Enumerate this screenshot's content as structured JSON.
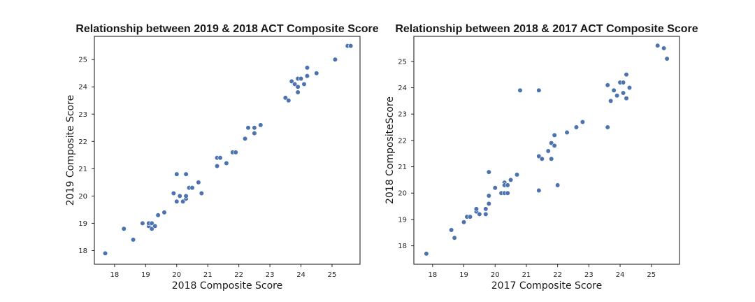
{
  "chart_data": [
    {
      "type": "scatter",
      "title": "Relationship between 2019 & 2018 ACT Composite Score",
      "xlabel": "2018 Composite Score",
      "ylabel": "2019 Composite Score",
      "xlim": [
        17.35,
        25.9
      ],
      "ylim": [
        17.5,
        25.85
      ],
      "xticks": [
        18,
        19,
        20,
        21,
        22,
        23,
        24,
        25
      ],
      "yticks": [
        18,
        19,
        20,
        21,
        22,
        23,
        24,
        25
      ],
      "grid": false,
      "color": "#4c72b0",
      "points": [
        [
          17.7,
          17.9
        ],
        [
          18.3,
          18.8
        ],
        [
          18.6,
          18.4
        ],
        [
          18.9,
          19.0
        ],
        [
          19.1,
          18.9
        ],
        [
          19.1,
          19.0
        ],
        [
          19.2,
          18.8
        ],
        [
          19.2,
          19.0
        ],
        [
          19.3,
          18.9
        ],
        [
          19.4,
          19.3
        ],
        [
          19.6,
          19.4
        ],
        [
          19.9,
          20.1
        ],
        [
          20.0,
          19.8
        ],
        [
          20.0,
          20.8
        ],
        [
          20.1,
          20.0
        ],
        [
          20.2,
          19.8
        ],
        [
          20.3,
          19.9
        ],
        [
          20.3,
          20.0
        ],
        [
          20.3,
          20.8
        ],
        [
          20.4,
          20.3
        ],
        [
          20.5,
          20.3
        ],
        [
          20.7,
          20.5
        ],
        [
          20.8,
          20.1
        ],
        [
          21.3,
          21.1
        ],
        [
          21.3,
          21.4
        ],
        [
          21.4,
          21.4
        ],
        [
          21.6,
          21.2
        ],
        [
          21.8,
          21.6
        ],
        [
          21.9,
          21.6
        ],
        [
          22.2,
          22.1
        ],
        [
          22.3,
          22.5
        ],
        [
          22.5,
          22.3
        ],
        [
          22.5,
          22.5
        ],
        [
          22.7,
          22.6
        ],
        [
          23.5,
          23.6
        ],
        [
          23.6,
          23.5
        ],
        [
          23.7,
          24.2
        ],
        [
          23.8,
          24.1
        ],
        [
          23.9,
          23.8
        ],
        [
          23.9,
          24.0
        ],
        [
          23.9,
          24.3
        ],
        [
          24.0,
          24.3
        ],
        [
          24.1,
          24.1
        ],
        [
          24.2,
          24.4
        ],
        [
          24.2,
          24.7
        ],
        [
          24.5,
          24.5
        ],
        [
          25.1,
          25.0
        ],
        [
          25.5,
          25.5
        ],
        [
          25.6,
          25.5
        ]
      ]
    },
    {
      "type": "scatter",
      "title": "Relationship between 2018 & 2017 ACT Composite Score",
      "xlabel": "2017 Composite Score",
      "ylabel": "2018 CompositeScore",
      "xlim": [
        17.4,
        25.9
      ],
      "ylim": [
        17.3,
        25.95
      ],
      "xticks": [
        18,
        19,
        20,
        21,
        22,
        23,
        24,
        25
      ],
      "yticks": [
        18,
        19,
        20,
        21,
        22,
        23,
        24,
        25
      ],
      "grid": false,
      "color": "#4c72b0",
      "points": [
        [
          17.8,
          17.7
        ],
        [
          18.6,
          18.6
        ],
        [
          18.7,
          18.3
        ],
        [
          19.0,
          18.9
        ],
        [
          19.1,
          19.1
        ],
        [
          19.2,
          19.1
        ],
        [
          19.4,
          19.3
        ],
        [
          19.4,
          19.4
        ],
        [
          19.5,
          19.2
        ],
        [
          19.7,
          19.2
        ],
        [
          19.7,
          19.4
        ],
        [
          19.8,
          19.6
        ],
        [
          19.8,
          19.9
        ],
        [
          19.8,
          20.8
        ],
        [
          20.0,
          20.2
        ],
        [
          20.2,
          20.0
        ],
        [
          20.3,
          20.0
        ],
        [
          20.3,
          20.4
        ],
        [
          20.3,
          20.3
        ],
        [
          20.4,
          20.0
        ],
        [
          20.4,
          20.3
        ],
        [
          20.5,
          20.5
        ],
        [
          20.7,
          20.7
        ],
        [
          20.8,
          23.9
        ],
        [
          21.4,
          20.1
        ],
        [
          21.4,
          21.4
        ],
        [
          21.4,
          23.9
        ],
        [
          21.5,
          21.3
        ],
        [
          21.7,
          21.6
        ],
        [
          21.8,
          21.3
        ],
        [
          21.8,
          21.9
        ],
        [
          21.9,
          21.8
        ],
        [
          21.9,
          22.2
        ],
        [
          22.0,
          20.3
        ],
        [
          22.3,
          22.3
        ],
        [
          22.6,
          22.5
        ],
        [
          22.8,
          22.7
        ],
        [
          23.6,
          22.5
        ],
        [
          23.6,
          24.1
        ],
        [
          23.7,
          23.5
        ],
        [
          23.8,
          23.9
        ],
        [
          23.9,
          23.7
        ],
        [
          24.0,
          24.2
        ],
        [
          24.1,
          23.8
        ],
        [
          24.1,
          24.2
        ],
        [
          24.2,
          23.6
        ],
        [
          24.2,
          24.5
        ],
        [
          24.3,
          24.0
        ],
        [
          25.2,
          25.6
        ],
        [
          25.4,
          25.5
        ],
        [
          25.5,
          25.1
        ]
      ]
    }
  ]
}
